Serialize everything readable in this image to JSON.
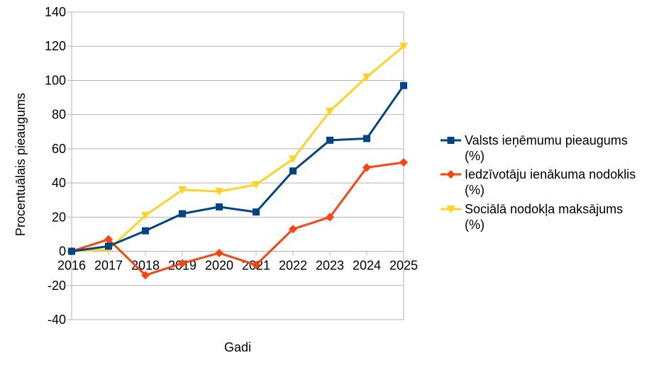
{
  "chart_data": {
    "type": "line",
    "xlabel": "Gadi",
    "ylabel": "Procentuālais pieaugums",
    "ylim": [
      -40,
      140
    ],
    "ytick_step": 20,
    "grid": "horizontal",
    "legend_position": "right",
    "categories": [
      "2016",
      "2017",
      "2018",
      "2019",
      "2020",
      "2021",
      "2022",
      "2023",
      "2024",
      "2025"
    ],
    "series": [
      {
        "name": "Valsts ieņēmumu pieaugums (%)",
        "legend_lines": [
          "Valsts ieņēmumu pieaugums",
          "(%)"
        ],
        "color": "#004586",
        "marker": "square",
        "values": [
          0,
          3,
          12,
          22,
          26,
          23,
          47,
          65,
          66,
          97
        ]
      },
      {
        "name": "Iedzīvotāju ienākuma nodoklis (%)",
        "legend_lines": [
          "Iedzīvotāju ienākuma nodoklis",
          "(%)"
        ],
        "color": "#ff420e",
        "marker": "diamond",
        "values": [
          0,
          7,
          -14,
          -7,
          -1,
          -8,
          13,
          20,
          49,
          52
        ]
      },
      {
        "name": "Sociālā nodokļa maksājums (%)",
        "legend_lines": [
          "Sociālā nodokļa maksājums",
          "(%)"
        ],
        "color": "#ffd320",
        "marker": "triangle-down",
        "values": [
          0,
          1,
          21,
          36,
          35,
          39,
          54,
          82,
          102,
          120
        ]
      }
    ]
  }
}
